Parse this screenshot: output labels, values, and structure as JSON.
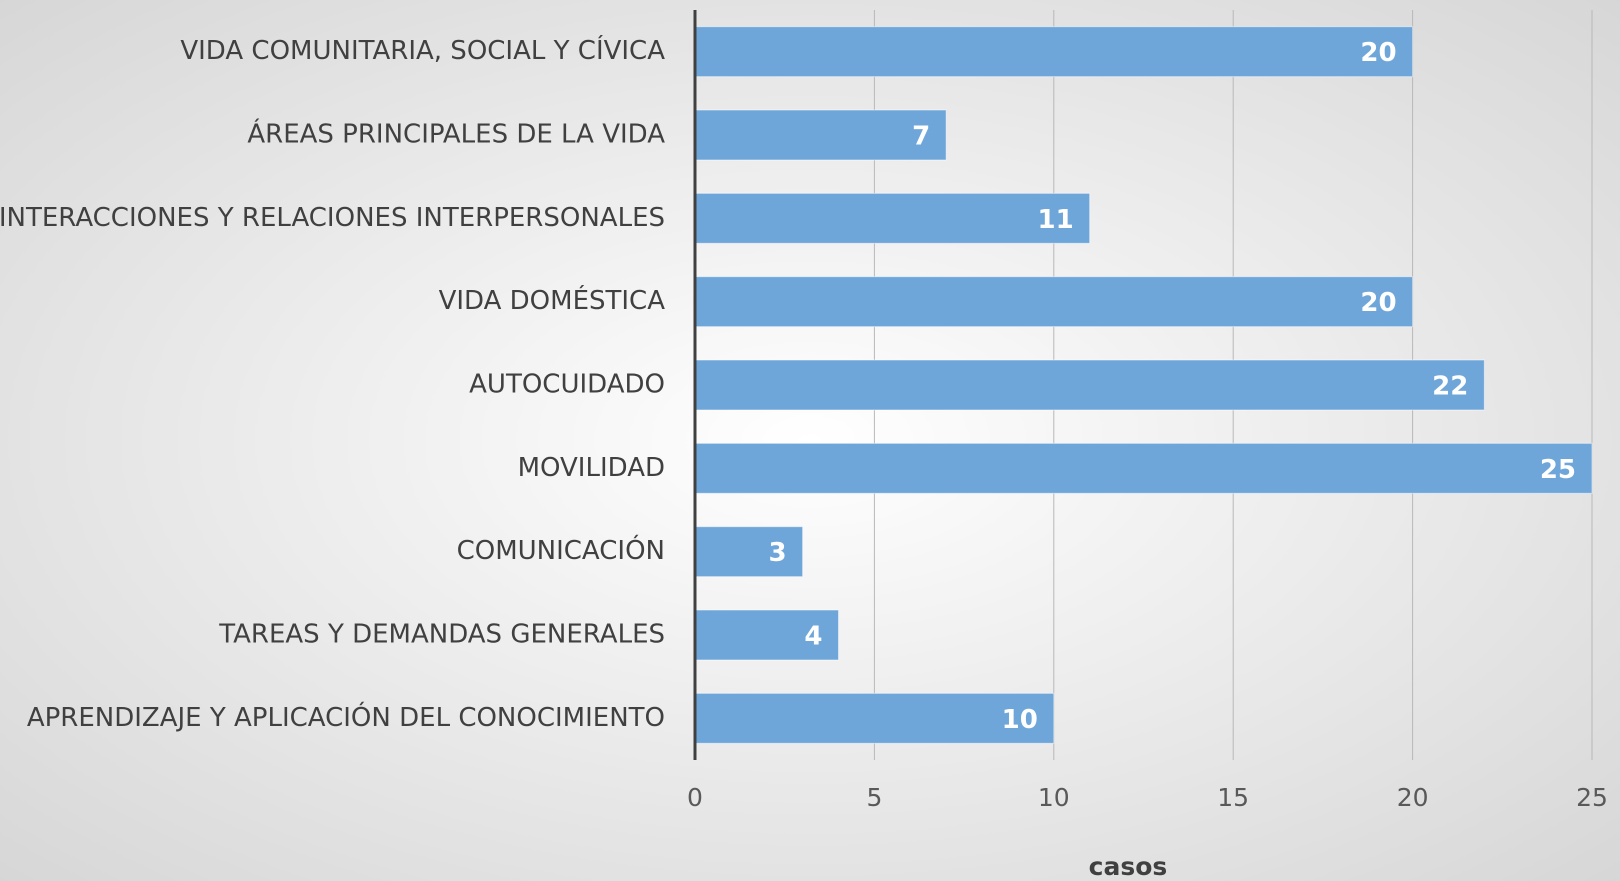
{
  "chart_data": {
    "type": "bar",
    "orientation": "horizontal",
    "x_label": "casos",
    "categories": [
      "VIDA COMUNITARIA, SOCIAL Y CÍVICA",
      "ÁREAS PRINCIPALES DE LA VIDA",
      "INTERACCIONES Y RELACIONES INTERPERSONALES",
      "VIDA DOMÉSTICA",
      "AUTOCUIDADO",
      "MOVILIDAD",
      "COMUNICACIÓN",
      "TAREAS Y DEMANDAS GENERALES",
      "APRENDIZAJE Y APLICACIÓN DEL CONOCIMIENTO"
    ],
    "values": [
      20,
      7,
      11,
      20,
      22,
      25,
      3,
      4,
      10
    ],
    "color": "#6fa6d9",
    "xlim": [
      0,
      25
    ],
    "xticks": [
      0,
      5,
      10,
      15,
      20,
      25
    ],
    "grid": true
  }
}
